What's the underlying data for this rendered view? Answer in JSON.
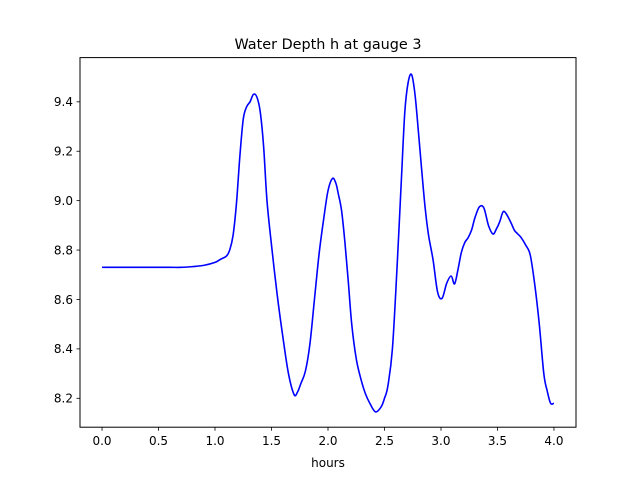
{
  "chart_data": {
    "type": "line",
    "title": "Water Depth h at gauge 3",
    "xlabel": "hours",
    "ylabel": "",
    "xlim": [
      -0.195,
      4.195
    ],
    "ylim": [
      8.083,
      9.579
    ],
    "xticks": [
      0.0,
      0.5,
      1.0,
      1.5,
      2.0,
      2.5,
      3.0,
      3.5,
      4.0
    ],
    "xtick_labels": [
      "0.0",
      "0.5",
      "1.0",
      "1.5",
      "2.0",
      "2.5",
      "3.0",
      "3.5",
      "4.0"
    ],
    "yticks": [
      8.2,
      8.4,
      8.6,
      8.8,
      9.0,
      9.2,
      9.4
    ],
    "ytick_labels": [
      "8.2",
      "8.4",
      "8.6",
      "8.8",
      "9.0",
      "9.2",
      "9.4"
    ],
    "grid": false,
    "legend": "none",
    "series": [
      {
        "color": "#0000ff",
        "x": [
          0.0,
          0.2,
          0.4,
          0.6,
          0.7,
          0.8,
          0.9,
          1.0,
          1.05,
          1.1,
          1.13,
          1.16,
          1.19,
          1.22,
          1.25,
          1.28,
          1.31,
          1.34,
          1.37,
          1.4,
          1.43,
          1.46,
          1.5,
          1.55,
          1.6,
          1.65,
          1.7,
          1.73,
          1.76,
          1.8,
          1.84,
          1.88,
          1.92,
          1.96,
          2.0,
          2.04,
          2.07,
          2.09,
          2.12,
          2.15,
          2.18,
          2.21,
          2.25,
          2.29,
          2.33,
          2.37,
          2.42,
          2.47,
          2.5,
          2.53,
          2.57,
          2.61,
          2.65,
          2.68,
          2.71,
          2.74,
          2.77,
          2.8,
          2.83,
          2.86,
          2.89,
          2.93,
          2.97,
          3.01,
          3.05,
          3.09,
          3.12,
          3.15,
          3.18,
          3.21,
          3.24,
          3.27,
          3.3,
          3.34,
          3.38,
          3.42,
          3.46,
          3.49,
          3.52,
          3.55,
          3.58,
          3.62,
          3.65,
          3.68,
          3.71,
          3.75,
          3.79,
          3.83,
          3.87,
          3.91,
          3.94,
          3.97,
          4.0
        ],
        "y": [
          8.73,
          8.73,
          8.73,
          8.73,
          8.73,
          8.733,
          8.738,
          8.75,
          8.763,
          8.775,
          8.8,
          8.86,
          8.99,
          9.18,
          9.33,
          9.38,
          9.4,
          9.43,
          9.42,
          9.36,
          9.22,
          9.0,
          8.82,
          8.62,
          8.45,
          8.3,
          8.215,
          8.225,
          8.26,
          8.31,
          8.42,
          8.6,
          8.78,
          8.92,
          9.04,
          9.09,
          9.07,
          9.03,
          8.96,
          8.83,
          8.67,
          8.5,
          8.36,
          8.28,
          8.22,
          8.18,
          8.145,
          8.165,
          8.2,
          8.25,
          8.4,
          8.72,
          9.09,
          9.36,
          9.48,
          9.51,
          9.43,
          9.28,
          9.12,
          8.97,
          8.86,
          8.76,
          8.63,
          8.605,
          8.665,
          8.695,
          8.663,
          8.72,
          8.79,
          8.83,
          8.85,
          8.88,
          8.93,
          8.975,
          8.97,
          8.9,
          8.865,
          8.885,
          8.915,
          8.955,
          8.945,
          8.91,
          8.88,
          8.865,
          8.85,
          8.82,
          8.78,
          8.66,
          8.5,
          8.3,
          8.23,
          8.18,
          8.18
        ]
      }
    ]
  }
}
